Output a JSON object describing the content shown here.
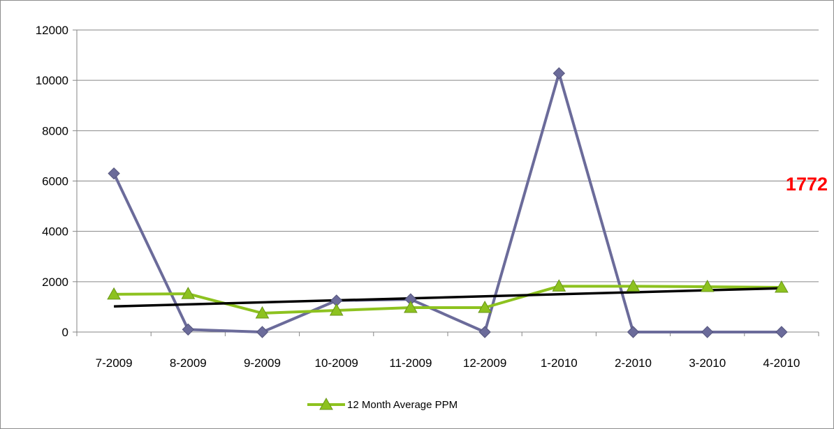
{
  "chart_data": {
    "type": "line",
    "title": "",
    "xlabel": "",
    "ylabel": "",
    "categories": [
      "7-2009",
      "8-2009",
      "9-2009",
      "10-2009",
      "11-2009",
      "12-2009",
      "1-2010",
      "2-2010",
      "3-2010",
      "4-2010"
    ],
    "ylim": [
      0,
      12000
    ],
    "yticks": [
      0,
      2000,
      4000,
      6000,
      8000,
      10000,
      12000
    ],
    "grid": "horizontal",
    "legend_position": "bottom",
    "series": [
      {
        "values": [
          6300,
          100,
          0,
          1250,
          1300,
          0,
          10280,
          0,
          0,
          0
        ],
        "color": "#6b6b9a",
        "marker": "diamond"
      },
      {
        "name": "12 Month Average PPM",
        "values": [
          1500,
          1520,
          750,
          860,
          970,
          970,
          1820,
          1820,
          1800,
          1772
        ],
        "color": "#8dc21f",
        "marker": "triangle"
      }
    ],
    "trendline": {
      "color": "#000000",
      "start": 1020,
      "end": 1740
    },
    "annotation": {
      "text": "1772",
      "color": "#ff0000"
    }
  }
}
